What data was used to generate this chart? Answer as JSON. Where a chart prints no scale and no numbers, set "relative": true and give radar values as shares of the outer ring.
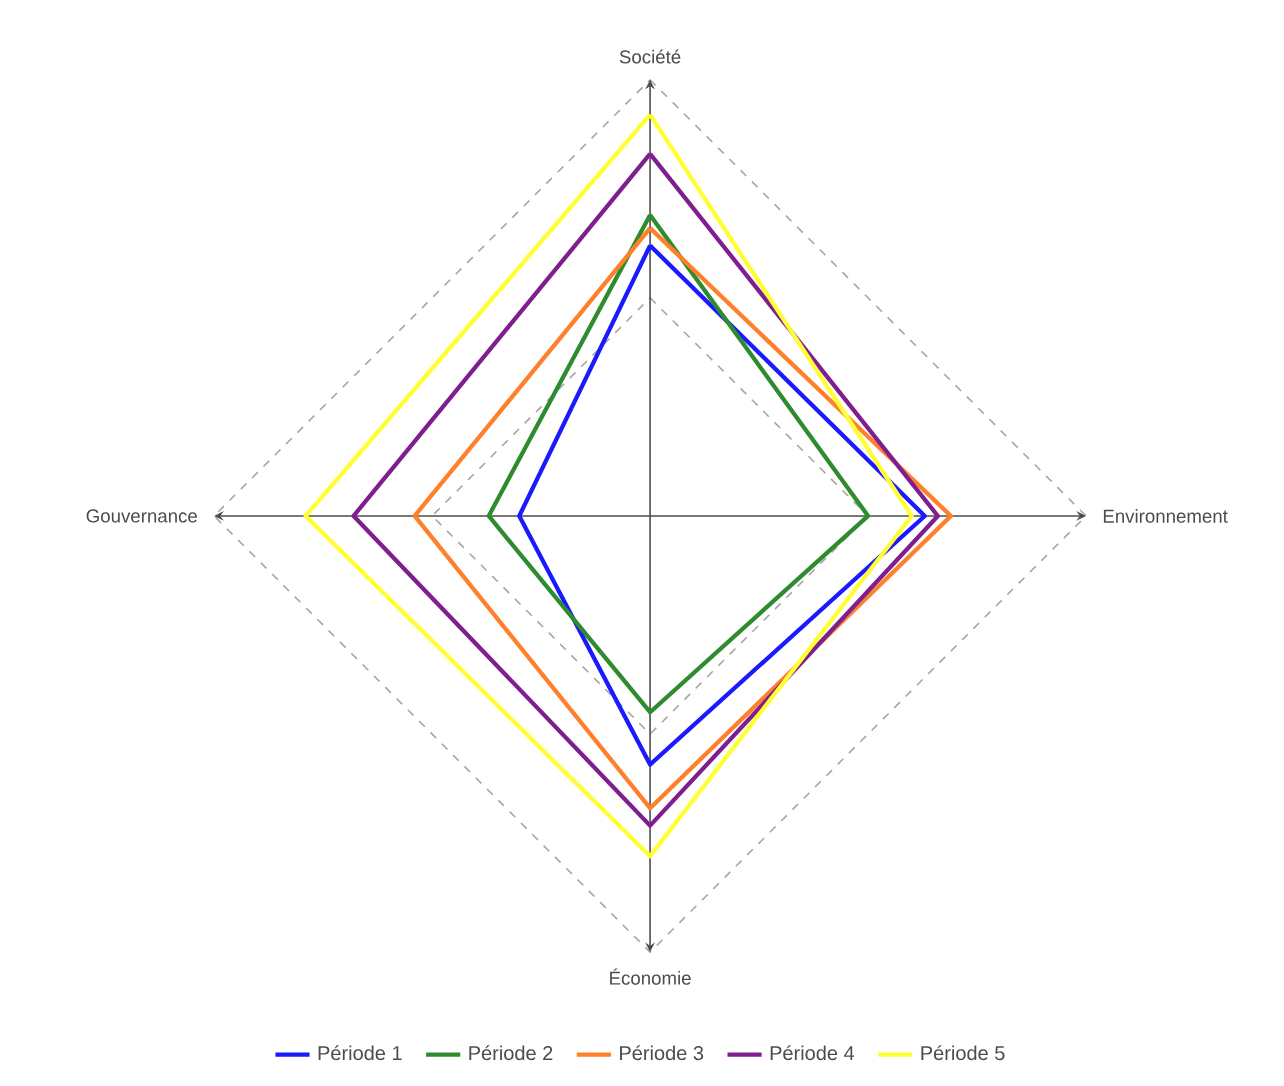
{
  "chart_data": {
    "type": "radar",
    "relative": true,
    "grid": true,
    "legend": "bottom",
    "categories": [
      "Société",
      "Environnement",
      "Économie",
      "Gouvernance"
    ],
    "series": [
      {
        "name": "Période 1",
        "color": "#1a1aff",
        "values": [
          0.62,
          0.63,
          0.57,
          0.3
        ]
      },
      {
        "name": "Période 2",
        "color": "#2e8b2e",
        "values": [
          0.69,
          0.5,
          0.45,
          0.37
        ]
      },
      {
        "name": "Période 3",
        "color": "#ff7f2a",
        "values": [
          0.66,
          0.69,
          0.67,
          0.54
        ]
      },
      {
        "name": "Période 4",
        "color": "#7f1f8f",
        "values": [
          0.83,
          0.66,
          0.71,
          0.68
        ]
      },
      {
        "name": "Période 5",
        "color": "#ffff33",
        "values": [
          0.92,
          0.6,
          0.78,
          0.79
        ]
      }
    ]
  }
}
